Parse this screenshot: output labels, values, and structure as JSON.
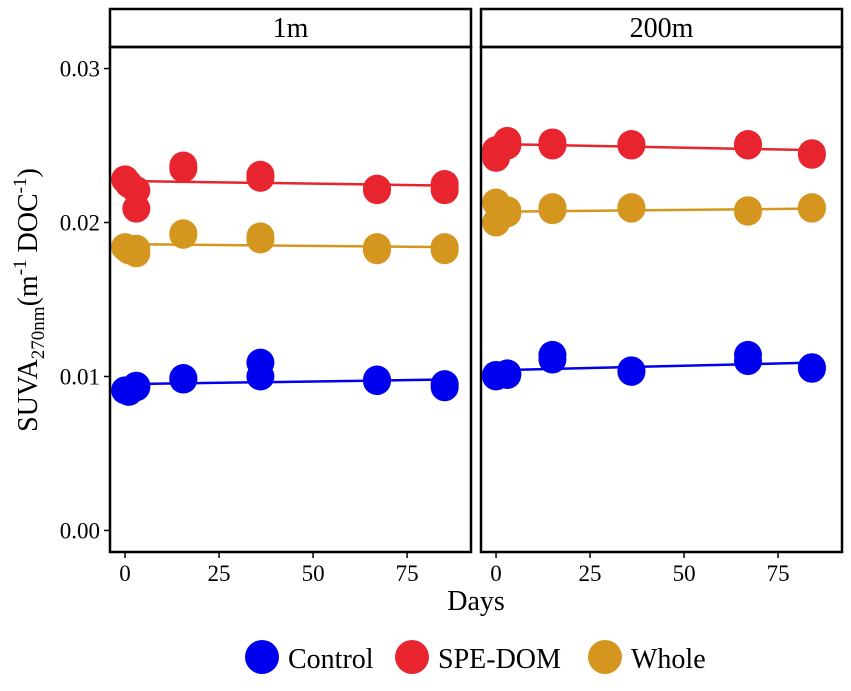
{
  "chart_data": {
    "type": "scatter",
    "subplots": [
      {
        "panel": "1m",
        "series": [
          {
            "name": "Control",
            "color": "#0000ee",
            "points": [
              [
                0,
                0.0091
              ],
              [
                1,
                0.009
              ],
              [
                3,
                0.0094
              ],
              [
                3,
                0.0093
              ],
              [
                15.5,
                0.0099
              ],
              [
                15.5,
                0.0098
              ],
              [
                36,
                0.0109
              ],
              [
                36,
                0.01
              ],
              [
                67,
                0.0098
              ],
              [
                67,
                0.0097
              ],
              [
                85,
                0.0095
              ],
              [
                85,
                0.0093
              ]
            ],
            "trend": [
              [
                0,
                0.0095
              ],
              [
                85,
                0.0098
              ]
            ]
          },
          {
            "name": "SPE-DOM",
            "color": "#e8252e",
            "points": [
              [
                0,
                0.0228
              ],
              [
                1,
                0.0225
              ],
              [
                3,
                0.0221
              ],
              [
                3,
                0.0209
              ],
              [
                15.5,
                0.0237
              ],
              [
                15.5,
                0.0235
              ],
              [
                36,
                0.0231
              ],
              [
                36,
                0.0229
              ],
              [
                67,
                0.0222
              ],
              [
                67,
                0.0221
              ],
              [
                85,
                0.0225
              ],
              [
                85,
                0.0221
              ]
            ],
            "trend": [
              [
                0,
                0.0227
              ],
              [
                85,
                0.0224
              ]
            ]
          },
          {
            "name": "Whole",
            "color": "#d4961f",
            "points": [
              [
                0,
                0.0184
              ],
              [
                1,
                0.0182
              ],
              [
                3,
                0.0183
              ],
              [
                3,
                0.018
              ],
              [
                15.5,
                0.0193
              ],
              [
                15.5,
                0.0192
              ],
              [
                36,
                0.0191
              ],
              [
                36,
                0.0189
              ],
              [
                67,
                0.0184
              ],
              [
                67,
                0.0182
              ],
              [
                85,
                0.0184
              ],
              [
                85,
                0.0182
              ]
            ],
            "trend": [
              [
                0,
                0.0186
              ],
              [
                85,
                0.0184
              ]
            ]
          }
        ]
      },
      {
        "panel": "200m",
        "series": [
          {
            "name": "Control",
            "color": "#0000ee",
            "points": [
              [
                0,
                0.0101
              ],
              [
                0,
                0.01
              ],
              [
                3,
                0.0102
              ],
              [
                3,
                0.0101
              ],
              [
                15,
                0.0114
              ],
              [
                15,
                0.0111
              ],
              [
                36,
                0.0104
              ],
              [
                36,
                0.0103
              ],
              [
                67,
                0.0114
              ],
              [
                67,
                0.011
              ],
              [
                84,
                0.0106
              ],
              [
                84,
                0.0105
              ]
            ],
            "trend": [
              [
                0,
                0.0104
              ],
              [
                84,
                0.0109
              ]
            ]
          },
          {
            "name": "SPE-DOM",
            "color": "#e8252e",
            "points": [
              [
                0,
                0.0247
              ],
              [
                0,
                0.0242
              ],
              [
                3,
                0.0253
              ],
              [
                3,
                0.025
              ],
              [
                15,
                0.0252
              ],
              [
                15,
                0.025
              ],
              [
                36,
                0.0251
              ],
              [
                36,
                0.025
              ],
              [
                67,
                0.0251
              ],
              [
                67,
                0.025
              ],
              [
                84,
                0.0245
              ],
              [
                84,
                0.0244
              ]
            ],
            "trend": [
              [
                0,
                0.0251
              ],
              [
                84,
                0.0247
              ]
            ]
          },
          {
            "name": "Whole",
            "color": "#d4961f",
            "points": [
              [
                0,
                0.0213
              ],
              [
                0,
                0.02
              ],
              [
                3,
                0.0208
              ],
              [
                3,
                0.0206
              ],
              [
                15,
                0.021
              ],
              [
                15,
                0.0208
              ],
              [
                36,
                0.021
              ],
              [
                36,
                0.0209
              ],
              [
                67,
                0.0208
              ],
              [
                67,
                0.0207
              ],
              [
                84,
                0.021
              ],
              [
                84,
                0.0209
              ]
            ],
            "trend": [
              [
                0,
                0.0207
              ],
              [
                84,
                0.0209
              ]
            ]
          }
        ]
      }
    ],
    "xlabel": "Days",
    "ylabel_main": "SUVA",
    "ylabel_sub": "270nm",
    "ylabel_open": "(m",
    "ylabel_sup1": "-1",
    "ylabel_mid": " DOC",
    "ylabel_sup2": "-1",
    "ylabel_close": ")",
    "xticks": [
      0,
      25,
      50,
      75
    ],
    "xtick_labels": [
      "0",
      "25",
      "50",
      "75"
    ],
    "yticks": [
      0.0,
      0.01,
      0.02,
      0.03
    ],
    "ytick_labels": [
      "0.00",
      "0.01",
      "0.02",
      "0.03"
    ],
    "xlim": [
      -4,
      92
    ],
    "ylim": [
      -0.0014,
      0.0314
    ],
    "grid": false,
    "legend_position": "bottom",
    "legend": [
      {
        "name": "Control",
        "color": "#0000ee"
      },
      {
        "name": "SPE-DOM",
        "color": "#e8252e"
      },
      {
        "name": "Whole",
        "color": "#d4961f"
      }
    ]
  }
}
